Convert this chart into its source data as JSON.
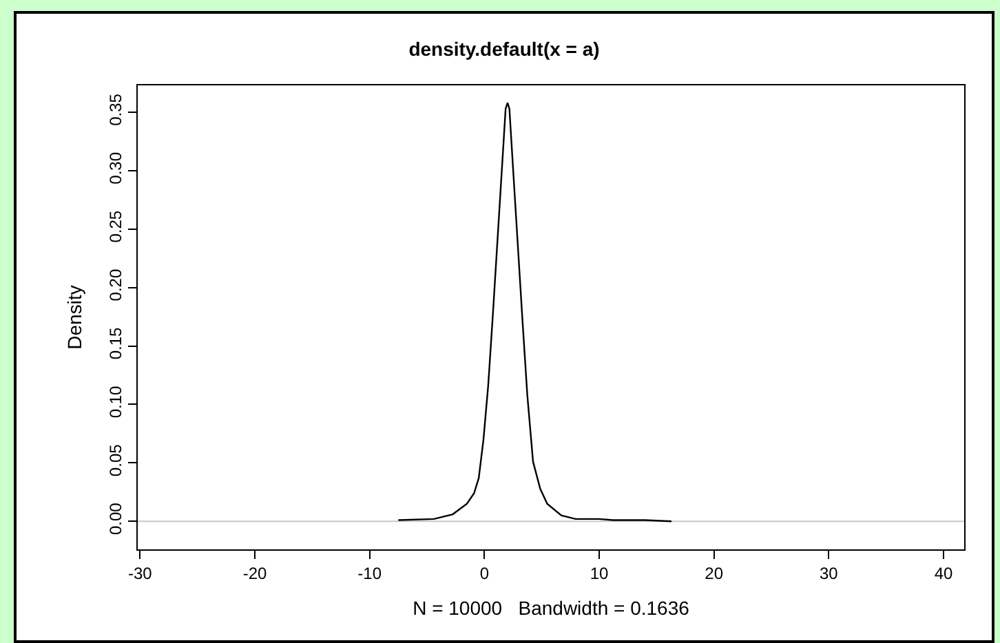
{
  "chart_data": {
    "type": "line",
    "title": "density.default(x = a)",
    "xlabel": "N = 10000   Bandwidth = 0.1636",
    "ylabel": "Density",
    "x": [
      -7.5,
      -4.4,
      -2.76,
      -1.52,
      -0.9,
      -0.49,
      -0.08,
      0.33,
      0.74,
      1.15,
      1.56,
      1.85,
      2.02,
      2.18,
      2.51,
      2.92,
      3.33,
      3.74,
      4.24,
      4.86,
      5.47,
      6.7,
      7.94,
      10,
      11.2,
      14,
      16.3
    ],
    "series": [
      {
        "color": "#000000",
        "values": [
          0.001,
          0.002,
          0.006,
          0.015,
          0.024,
          0.037,
          0.07,
          0.116,
          0.177,
          0.242,
          0.307,
          0.353,
          0.358,
          0.353,
          0.3,
          0.235,
          0.17,
          0.108,
          0.051,
          0.028,
          0.015,
          0.005,
          0.002,
          0.002,
          0.001,
          0.001,
          0
        ]
      }
    ],
    "xlim": [
      -30.2,
      41.8
    ],
    "xticks": [
      -30,
      -20,
      -10,
      0,
      10,
      20,
      30,
      40
    ],
    "ylim": [
      -0.024,
      0.373
    ],
    "yticks": [
      {
        "value": 0,
        "label": "0.00"
      },
      {
        "value": 0.05,
        "label": "0.05"
      },
      {
        "value": 0.1,
        "label": "0.10"
      },
      {
        "value": 0.15,
        "label": "0.15"
      },
      {
        "value": 0.2,
        "label": "0.20"
      },
      {
        "value": 0.25,
        "label": "0.25"
      },
      {
        "value": 0.3,
        "label": "0.30"
      },
      {
        "value": 0.35,
        "label": "0.35"
      }
    ],
    "ref_lines": [
      {
        "axis": "y",
        "value": 0,
        "color": "#c8c8c8"
      }
    ],
    "grid": false,
    "marker": "none",
    "line_style": "solid"
  }
}
